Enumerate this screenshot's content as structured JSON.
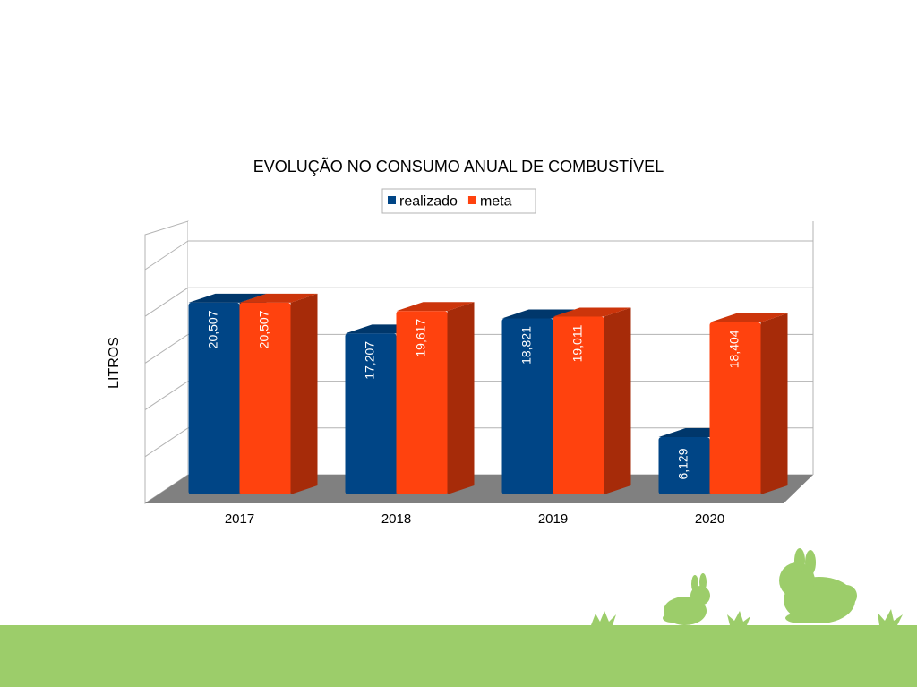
{
  "chart_data": {
    "type": "bar3d",
    "title": "EVOLUÇÃO NO CONSUMO ANUAL DE COMBUSTÍVEL",
    "y_label": "LITROS",
    "categories": [
      "2017",
      "2018",
      "2019",
      "2020"
    ],
    "series": [
      {
        "name": "realizado",
        "color": "#004586",
        "values": [
          20507,
          17207,
          18821,
          6129
        ],
        "value_labels": [
          "20,507",
          "17,207",
          "18,821",
          "6,129"
        ]
      },
      {
        "name": "meta",
        "color": "#ff420e",
        "values": [
          20507,
          19617,
          19011,
          18404
        ],
        "value_labels": [
          "20,507",
          "19,617",
          "19,011",
          "18,404"
        ]
      }
    ],
    "ylim": [
      0,
      25000
    ],
    "yticks": [
      0,
      5000,
      10000,
      15000,
      20000,
      25000
    ],
    "grid": true,
    "legend": "top"
  }
}
